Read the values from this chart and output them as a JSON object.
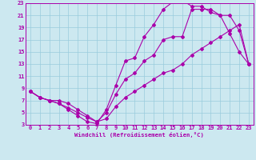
{
  "xlabel": "Windchill (Refroidissement éolien,°C)",
  "bg_color": "#cce8f0",
  "line_color": "#aa00aa",
  "grid_color": "#99ccdd",
  "spine_color": "#aa00aa",
  "xlim": [
    -0.5,
    23.5
  ],
  "ylim": [
    3,
    23
  ],
  "xticks": [
    0,
    1,
    2,
    3,
    4,
    5,
    6,
    7,
    8,
    9,
    10,
    11,
    12,
    13,
    14,
    15,
    16,
    17,
    18,
    19,
    20,
    21,
    22,
    23
  ],
  "yticks": [
    3,
    5,
    7,
    9,
    11,
    13,
    15,
    17,
    19,
    21,
    23
  ],
  "line1_x": [
    0,
    1,
    2,
    3,
    4,
    5,
    6,
    7,
    8,
    9,
    10,
    11,
    12,
    13,
    14,
    15,
    16,
    17,
    18,
    19,
    20,
    21,
    22,
    23
  ],
  "line1_y": [
    8.5,
    7.5,
    7.0,
    6.5,
    5.5,
    4.5,
    3.5,
    3.2,
    5.5,
    9.5,
    13.5,
    14.0,
    17.5,
    19.5,
    22.0,
    23.2,
    23.5,
    22.5,
    22.5,
    21.5,
    21.0,
    18.0,
    15.0,
    13.0
  ],
  "line2_x": [
    0,
    1,
    2,
    3,
    4,
    5,
    6,
    7,
    8,
    9,
    10,
    11,
    12,
    13,
    14,
    15,
    16,
    17,
    18,
    19,
    20,
    21,
    22,
    23
  ],
  "line2_y": [
    8.5,
    7.5,
    7.0,
    6.5,
    5.8,
    5.0,
    4.2,
    3.5,
    5.0,
    8.0,
    10.5,
    11.5,
    13.5,
    14.5,
    17.0,
    17.5,
    17.5,
    22.0,
    22.0,
    22.0,
    21.0,
    21.0,
    18.5,
    13.0
  ],
  "line3_x": [
    0,
    1,
    2,
    3,
    4,
    5,
    6,
    7,
    8,
    9,
    10,
    11,
    12,
    13,
    14,
    15,
    16,
    17,
    18,
    19,
    20,
    21,
    22,
    23
  ],
  "line3_y": [
    8.5,
    7.5,
    7.0,
    7.0,
    6.5,
    5.5,
    4.5,
    3.5,
    4.0,
    6.0,
    7.5,
    8.5,
    9.5,
    10.5,
    11.5,
    12.0,
    13.0,
    14.5,
    15.5,
    16.5,
    17.5,
    18.5,
    19.5,
    13.0
  ],
  "tick_fontsize": 5.0,
  "xlabel_fontsize": 5.2
}
